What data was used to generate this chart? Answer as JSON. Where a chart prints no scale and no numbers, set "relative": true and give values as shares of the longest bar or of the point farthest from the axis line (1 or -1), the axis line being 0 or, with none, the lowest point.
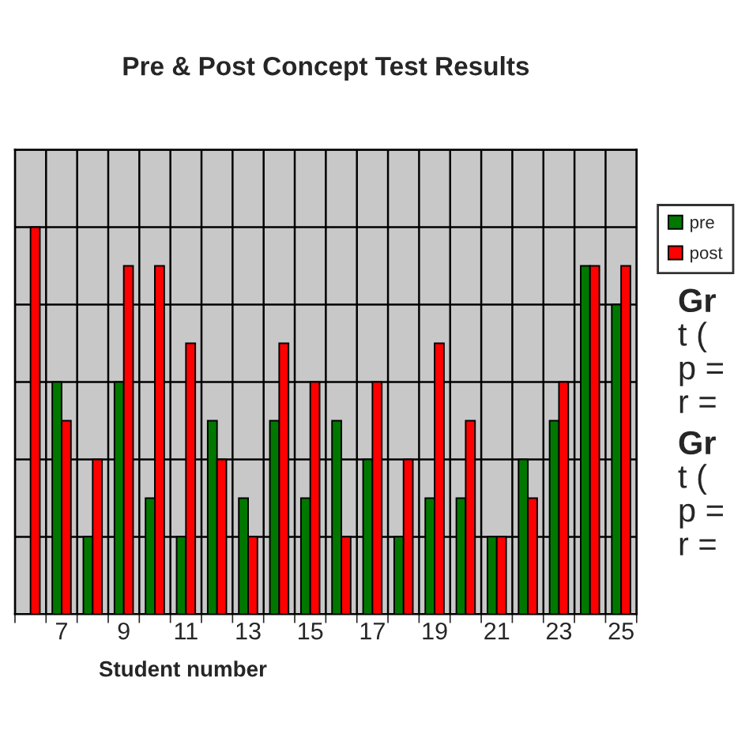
{
  "chart_data": {
    "type": "bar",
    "title": "Pre & Post Concept Test Results",
    "xlabel": "Student number",
    "relative": true,
    "categories": [
      null,
      "7",
      null,
      "9",
      null,
      "11",
      null,
      "13",
      null,
      "15",
      null,
      "17",
      null,
      "19",
      null,
      "21",
      null,
      "23",
      null,
      "25"
    ],
    "series": [
      {
        "name": "pre",
        "color": "#007800",
        "values": [
          null,
          0.6,
          0.2,
          0.6,
          0.3,
          0.2,
          0.5,
          0.3,
          0.5,
          0.3,
          0.5,
          0.4,
          0.2,
          0.3,
          0.3,
          0.2,
          0.4,
          0.5,
          0.9,
          0.8
        ]
      },
      {
        "name": "post",
        "color": "#ff0000",
        "values": [
          1.0,
          0.5,
          0.4,
          0.9,
          0.9,
          0.7,
          0.4,
          0.2,
          0.7,
          0.6,
          0.2,
          0.6,
          0.4,
          0.7,
          0.5,
          0.2,
          0.3,
          0.6,
          0.9,
          0.9
        ]
      }
    ],
    "grid": true,
    "legend": "right",
    "annotations": [
      "Gr",
      "t (",
      "p =",
      "r =",
      "Gr",
      "t (",
      "p =",
      "r ="
    ]
  }
}
